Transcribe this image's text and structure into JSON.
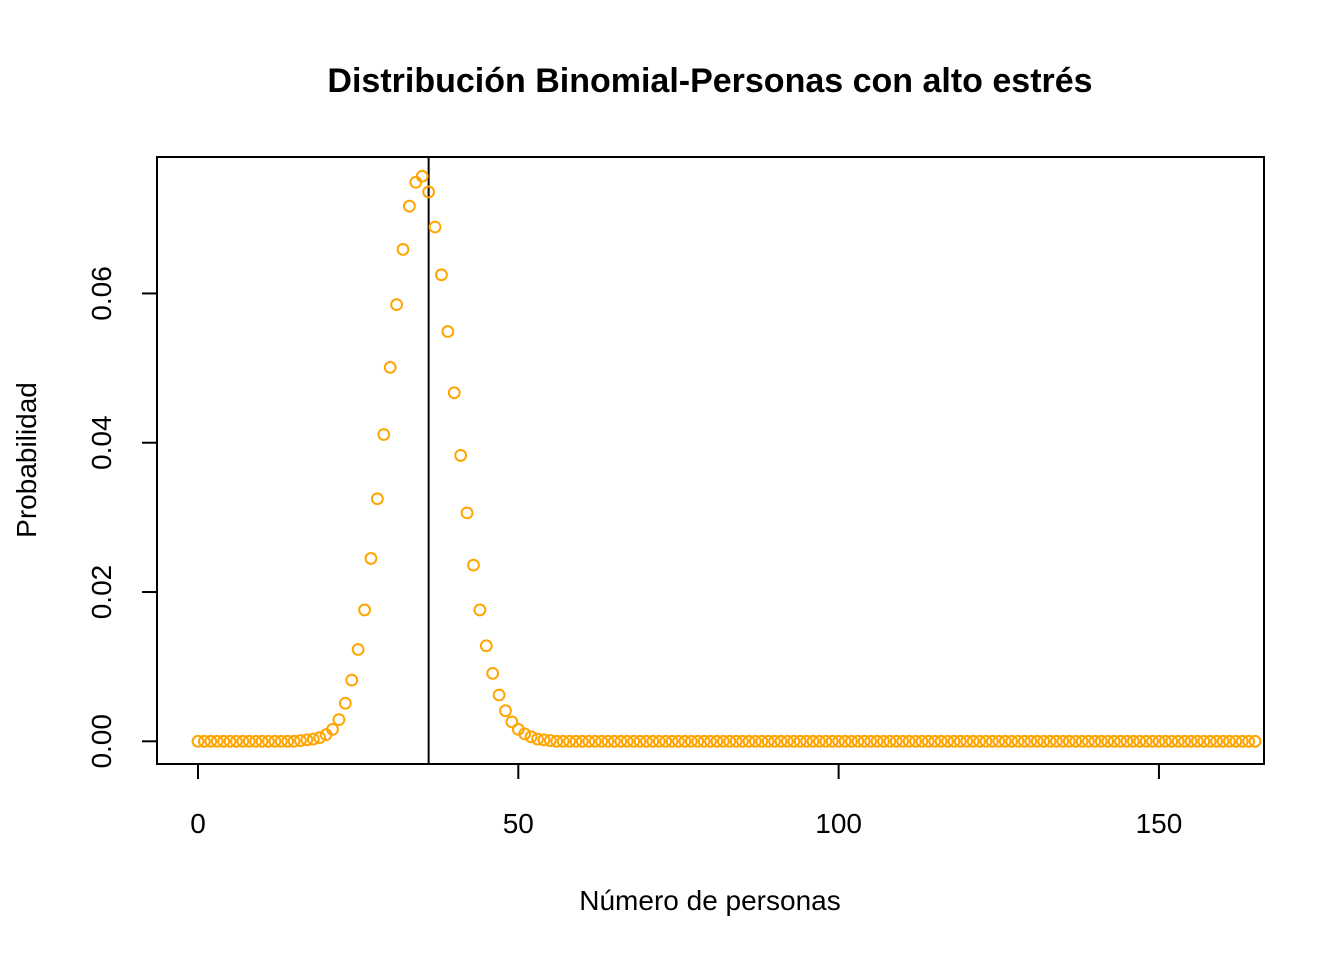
{
  "chart_data": {
    "type": "scatter",
    "title": "Distribución Binomial-Personas con alto estrés",
    "xlabel": "Número de personas",
    "ylabel": "Probabilidad",
    "xlim": [
      -6.4,
      166.4
    ],
    "ylim": [
      -0.00304,
      0.07828
    ],
    "x_ticks": [
      0,
      50,
      100,
      150
    ],
    "x_tick_labels": [
      "0",
      "50",
      "100",
      "150"
    ],
    "y_ticks": [
      0,
      0.02,
      0.04,
      0.06
    ],
    "y_tick_labels": [
      "0.00",
      "0.02",
      "0.04",
      "0.06"
    ],
    "grid": false,
    "marker": "open-circle",
    "point_color": "#FFA500",
    "reference_line": {
      "orientation": "vertical",
      "x": 36,
      "color": "#000000"
    },
    "series": [
      {
        "x_start": 0,
        "x_step": 1,
        "values": [
          0,
          0,
          0,
          0,
          0,
          0,
          0,
          0,
          0,
          0,
          0,
          0,
          0,
          0,
          0,
          0,
          0.0001,
          0.0002,
          0.0003,
          0.0005,
          0.0009,
          0.0016,
          0.0029,
          0.0051,
          0.0082,
          0.0123,
          0.0176,
          0.0245,
          0.0325,
          0.0411,
          0.0501,
          0.0585,
          0.0659,
          0.0717,
          0.0749,
          0.0757,
          0.0736,
          0.0689,
          0.0625,
          0.0549,
          0.0467,
          0.0383,
          0.0306,
          0.0236,
          0.0176,
          0.0128,
          0.0091,
          0.0062,
          0.0041,
          0.0026,
          0.0016,
          0.001,
          0.0006,
          0.0003,
          0.0002,
          0.0001,
          0,
          0,
          0,
          0,
          0,
          0,
          0,
          0,
          0,
          0,
          0,
          0,
          0,
          0,
          0,
          0,
          0,
          0,
          0,
          0,
          0,
          0,
          0,
          0,
          0,
          0,
          0,
          0,
          0,
          0,
          0,
          0,
          0,
          0,
          0,
          0,
          0,
          0,
          0,
          0,
          0,
          0,
          0,
          0,
          0,
          0,
          0,
          0,
          0,
          0,
          0,
          0,
          0,
          0,
          0,
          0,
          0,
          0,
          0,
          0,
          0,
          0,
          0,
          0,
          0,
          0,
          0,
          0,
          0,
          0,
          0,
          0,
          0,
          0,
          0,
          0,
          0,
          0,
          0,
          0,
          0,
          0,
          0,
          0,
          0,
          0,
          0,
          0,
          0,
          0,
          0,
          0,
          0,
          0,
          0,
          0,
          0,
          0,
          0,
          0,
          0,
          0,
          0,
          0,
          0,
          0,
          0,
          0,
          0,
          0
        ]
      }
    ]
  }
}
